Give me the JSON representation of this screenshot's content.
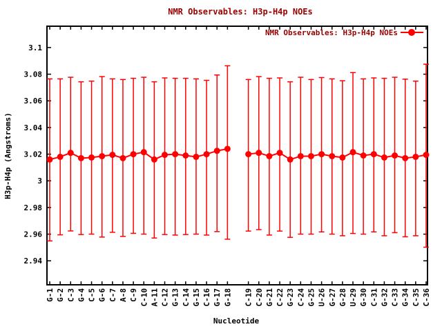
{
  "colors": {
    "series": "#ff0000",
    "title_text": "#990000",
    "axis": "#000000",
    "background": "#ffffff"
  },
  "chart_data": {
    "type": "line",
    "title": "NMR Observables: H3p-H4p NOEs",
    "xlabel": "Nucleotide",
    "ylabel": "H3p-H4p (Angstroms)",
    "legend": {
      "label": "NMR Observables: H3p-H4p NOEs",
      "position": "top-right-inside"
    },
    "grid": false,
    "ylim": [
      2.922,
      3.116
    ],
    "yticks": [
      {
        "value": 3.1,
        "label": "3.1"
      },
      {
        "value": 3.08,
        "label": "3.08"
      },
      {
        "value": 3.06,
        "label": "3.06"
      },
      {
        "value": 3.04,
        "label": "3.04"
      },
      {
        "value": 3.02,
        "label": "3.02"
      },
      {
        "value": 3.0,
        "label": "3"
      },
      {
        "value": 2.98,
        "label": "2.98"
      },
      {
        "value": 2.96,
        "label": "2.96"
      },
      {
        "value": 2.94,
        "label": "2.94"
      }
    ],
    "x_slots_total": 37,
    "gap_slot": 19,
    "series": [
      {
        "name": "NMR Observables: H3p-H4p NOEs",
        "color": "#ff0000",
        "marker": "filled-circle",
        "points": [
          {
            "label": "G-1",
            "slot": 1,
            "value": 3.016,
            "lo": 2.9549,
            "hi": 3.0765
          },
          {
            "label": "G-2",
            "slot": 2,
            "value": 3.018,
            "lo": 2.9595,
            "hi": 3.0765
          },
          {
            "label": "C-3",
            "slot": 3,
            "value": 3.021,
            "lo": 2.9624,
            "hi": 3.0777
          },
          {
            "label": "G-4",
            "slot": 4,
            "value": 3.017,
            "lo": 2.9597,
            "hi": 3.0743
          },
          {
            "label": "C-5",
            "slot": 5,
            "value": 3.0175,
            "lo": 2.96,
            "hi": 3.0748
          },
          {
            "label": "G-6",
            "slot": 6,
            "value": 3.0185,
            "lo": 2.9578,
            "hi": 3.0782
          },
          {
            "label": "C-7",
            "slot": 7,
            "value": 3.0195,
            "lo": 2.9614,
            "hi": 3.0765
          },
          {
            "label": "A-8",
            "slot": 8,
            "value": 3.017,
            "lo": 2.9583,
            "hi": 3.076
          },
          {
            "label": "C-9",
            "slot": 9,
            "value": 3.02,
            "lo": 2.9606,
            "hi": 3.0769
          },
          {
            "label": "C-10",
            "slot": 10,
            "value": 3.0215,
            "lo": 2.96,
            "hi": 3.0777
          },
          {
            "label": "A-11",
            "slot": 11,
            "value": 3.016,
            "lo": 2.9571,
            "hi": 3.0743
          },
          {
            "label": "C-12",
            "slot": 12,
            "value": 3.0195,
            "lo": 2.9597,
            "hi": 3.0772
          },
          {
            "label": "G-13",
            "slot": 13,
            "value": 3.02,
            "lo": 2.9593,
            "hi": 3.0769
          },
          {
            "label": "C-14",
            "slot": 14,
            "value": 3.019,
            "lo": 2.9597,
            "hi": 3.0769
          },
          {
            "label": "G-15",
            "slot": 15,
            "value": 3.018,
            "lo": 2.96,
            "hi": 3.0765
          },
          {
            "label": "C-16",
            "slot": 16,
            "value": 3.02,
            "lo": 2.9593,
            "hi": 3.0754
          },
          {
            "label": "G-17",
            "slot": 17,
            "value": 3.0225,
            "lo": 2.9619,
            "hi": 3.0794
          },
          {
            "label": "G-18",
            "slot": 18,
            "value": 3.024,
            "lo": 2.9562,
            "hi": 3.0863
          },
          {
            "label": "C-19",
            "slot": 20,
            "value": 3.02,
            "lo": 2.9623,
            "hi": 3.076
          },
          {
            "label": "C-20",
            "slot": 21,
            "value": 3.021,
            "lo": 2.9634,
            "hi": 3.0782
          },
          {
            "label": "G-21",
            "slot": 22,
            "value": 3.0185,
            "lo": 2.9593,
            "hi": 3.0769
          },
          {
            "label": "C-22",
            "slot": 23,
            "value": 3.021,
            "lo": 2.9623,
            "hi": 3.0772
          },
          {
            "label": "G-23",
            "slot": 24,
            "value": 3.016,
            "lo": 2.9576,
            "hi": 3.0743
          },
          {
            "label": "C-24",
            "slot": 25,
            "value": 3.0185,
            "lo": 2.96,
            "hi": 3.0777
          },
          {
            "label": "G-25",
            "slot": 26,
            "value": 3.0185,
            "lo": 2.96,
            "hi": 3.076
          },
          {
            "label": "U-26",
            "slot": 27,
            "value": 3.02,
            "lo": 2.9617,
            "hi": 3.0775
          },
          {
            "label": "G-27",
            "slot": 28,
            "value": 3.0185,
            "lo": 2.96,
            "hi": 3.0765
          },
          {
            "label": "G-28",
            "slot": 29,
            "value": 3.0175,
            "lo": 2.9588,
            "hi": 3.0751
          },
          {
            "label": "U-29",
            "slot": 30,
            "value": 3.0215,
            "lo": 2.9605,
            "hi": 3.0812
          },
          {
            "label": "G-30",
            "slot": 31,
            "value": 3.019,
            "lo": 2.96,
            "hi": 3.0765
          },
          {
            "label": "C-31",
            "slot": 32,
            "value": 3.02,
            "lo": 2.9617,
            "hi": 3.0772
          },
          {
            "label": "G-32",
            "slot": 33,
            "value": 3.0175,
            "lo": 2.9588,
            "hi": 3.0769
          },
          {
            "label": "C-33",
            "slot": 34,
            "value": 3.019,
            "lo": 2.9611,
            "hi": 3.0777
          },
          {
            "label": "G-34",
            "slot": 35,
            "value": 3.017,
            "lo": 2.958,
            "hi": 3.0763
          },
          {
            "label": "C-35",
            "slot": 36,
            "value": 3.018,
            "lo": 2.9588,
            "hi": 3.0748
          },
          {
            "label": "C-36",
            "slot": 37,
            "value": 3.0195,
            "lo": 2.9502,
            "hi": 3.0875
          }
        ]
      }
    ]
  }
}
